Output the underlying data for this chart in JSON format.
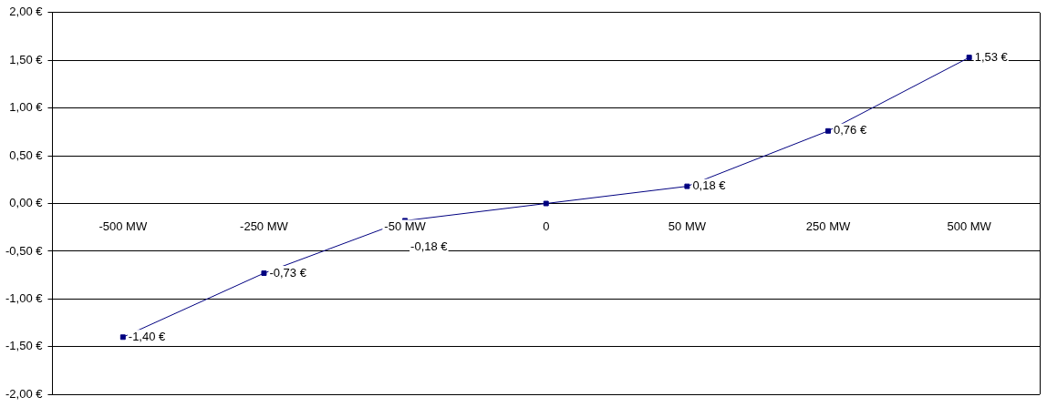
{
  "chart_data": {
    "type": "line",
    "categories": [
      "-500 MW",
      "-250 MW",
      "-50 MW",
      "0",
      "50 MW",
      "250 MW",
      "500 MW"
    ],
    "series": [
      {
        "color": "#000080",
        "values": [
          -1.4,
          -0.73,
          -0.18,
          0,
          0.18,
          0.76,
          1.53
        ],
        "value_labels": [
          "-1,40 €",
          "-0,73 €",
          "-0,18 €",
          null,
          "0,18 €",
          "0,76 €",
          "1,53 €"
        ]
      }
    ],
    "ylim": [
      -2,
      2
    ],
    "yticks": [
      {
        "value": -2,
        "label": "-2,00 €"
      },
      {
        "value": -1.5,
        "label": "-1,50 €"
      },
      {
        "value": -1,
        "label": "-1,00 €"
      },
      {
        "value": -0.5,
        "label": "-0,50 €"
      },
      {
        "value": 0,
        "label": "0,00 €"
      },
      {
        "value": 0.5,
        "label": "0,50 €"
      },
      {
        "value": 1,
        "label": "1,00 €"
      },
      {
        "value": 1.5,
        "label": "1,50 €"
      },
      {
        "value": 2,
        "label": "2,00 €"
      }
    ],
    "grid": "y",
    "legend": false,
    "marker": "square",
    "line_style": "solid"
  }
}
